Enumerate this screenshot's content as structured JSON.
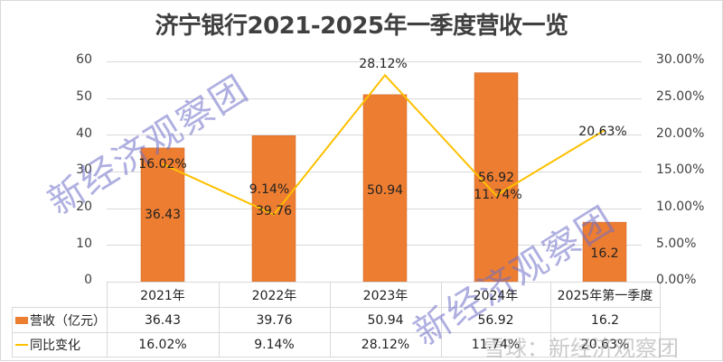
{
  "title": "济宁银行2021-2025年一季度营收一览",
  "colors": {
    "bar": "#ed7d31",
    "line": "#ffc000",
    "grid": "#d9d9d9",
    "watermark": "#7a7acb"
  },
  "axes": {
    "left_ticks": [
      "0",
      "10",
      "20",
      "30",
      "40",
      "50",
      "60"
    ],
    "right_ticks": [
      "0.00%",
      "5.00%",
      "10.00%",
      "15.00%",
      "20.00%",
      "25.00%",
      "30.00%"
    ]
  },
  "table": {
    "categories": [
      "2021年",
      "2022年",
      "2023年",
      "2024年",
      "2025年第一季度"
    ],
    "rows": [
      {
        "legend": "营收（亿元）",
        "values": [
          "36.43",
          "39.76",
          "50.94",
          "56.92",
          "16.2"
        ]
      },
      {
        "legend": "同比变化",
        "values": [
          "16.02%",
          "9.14%",
          "28.12%",
          "11.74%",
          "20.63%"
        ]
      }
    ]
  },
  "bar_labels": [
    "36.43",
    "39.76",
    "50.94",
    "56.92",
    "16.2"
  ],
  "line_labels": [
    "16.02%",
    "9.14%",
    "28.12%",
    "11.74%",
    "20.63%"
  ],
  "watermark": "新经济观察团",
  "footer_watermark": "雪球：新经济观察团",
  "chart_data": {
    "type": "bar",
    "title": "济宁银行2021-2025年一季度营收一览",
    "categories": [
      "2021年",
      "2022年",
      "2023年",
      "2024年",
      "2025年第一季度"
    ],
    "series": [
      {
        "name": "营收（亿元）",
        "type": "bar",
        "axis": "left",
        "values": [
          36.43,
          39.76,
          50.94,
          56.92,
          16.2
        ]
      },
      {
        "name": "同比变化",
        "type": "line",
        "axis": "right",
        "values": [
          16.02,
          9.14,
          28.12,
          11.74,
          20.63
        ],
        "unit": "%"
      }
    ],
    "xlabel": "",
    "ylabel": "",
    "ylim": [
      0,
      60
    ],
    "y2lim": [
      0,
      30
    ],
    "grid": true,
    "legend_position": "data-table"
  }
}
